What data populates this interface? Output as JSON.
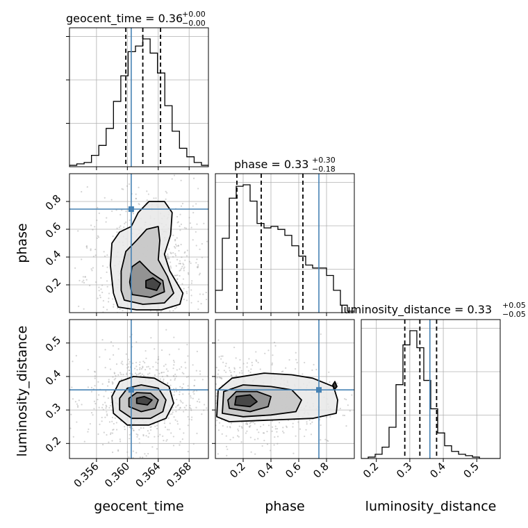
{
  "chart_data": {
    "type": "corner",
    "colors": {
      "truth": "#4682b4",
      "hist": "#000000",
      "grid": "#b0b0b0",
      "scatter": "#9e9e9e"
    },
    "parameters": [
      "geocent_time",
      "phase",
      "luminosity_distance"
    ],
    "axis_labels": [
      "geocent_time",
      "phase",
      "luminosity_distance"
    ],
    "ranges": [
      [
        0.3525,
        0.3705
      ],
      [
        0.0,
        1.0
      ],
      [
        0.155,
        0.57
      ]
    ],
    "truths": [
      0.3605,
      0.745,
      0.36
    ],
    "titles": [
      {
        "prefix": "geocent_time = ",
        "value": "0.36",
        "plus": "+0.00",
        "minus": "−0.00"
      },
      {
        "prefix": "phase = ",
        "value": "0.33",
        "plus": "+0.30",
        "minus": "−0.18"
      },
      {
        "prefix": "luminosity_distance = ",
        "value": "0.33",
        "plus": "+0.05",
        "minus": "−0.05"
      }
    ],
    "quantiles": [
      [
        0.3598,
        0.362,
        0.3643
      ],
      [
        0.155,
        0.33,
        0.63
      ],
      [
        0.285,
        0.33,
        0.38
      ]
    ],
    "ticks": [
      {
        "values": [
          0.356,
          0.36,
          0.364,
          0.368
        ],
        "labels": [
          "0.356",
          "0.360",
          "0.364",
          "0.368"
        ]
      },
      {
        "values": [
          0.2,
          0.4,
          0.6,
          0.8
        ],
        "labels": [
          "0.2",
          "0.4",
          "0.6",
          "0.8"
        ]
      },
      {
        "values": [
          0.2,
          0.3,
          0.4,
          0.5
        ],
        "labels": [
          "0.2",
          "0.3",
          "0.4",
          "0.5"
        ]
      }
    ],
    "histograms": [
      {
        "bins": [
          0.3525,
          0.35345,
          0.3544,
          0.35535,
          0.3563,
          0.35725,
          0.3582,
          0.35915,
          0.3601,
          0.36105,
          0.362,
          0.36295,
          0.3639,
          0.36485,
          0.3658,
          0.36675,
          0.3677,
          0.36865,
          0.3696,
          0.3705
        ],
        "counts": [
          1,
          2,
          3,
          8,
          15,
          27,
          46,
          64,
          81,
          85,
          90,
          80,
          66,
          43,
          25,
          13,
          7,
          3,
          1
        ]
      },
      {
        "bins": [
          0.0,
          0.05,
          0.1,
          0.15,
          0.2,
          0.25,
          0.3,
          0.35,
          0.4,
          0.45,
          0.5,
          0.55,
          0.6,
          0.65,
          0.7,
          0.75,
          0.8,
          0.85,
          0.9,
          0.95,
          1.0
        ],
        "counts": [
          15,
          50,
          77,
          85,
          86,
          75,
          60,
          57,
          58,
          56,
          52,
          45,
          38,
          32,
          30,
          30,
          25,
          15,
          5,
          1
        ]
      },
      {
        "bins": [
          0.155,
          0.17575,
          0.1965,
          0.21725,
          0.238,
          0.25875,
          0.2795,
          0.30025,
          0.321,
          0.34175,
          0.3625,
          0.38325,
          0.404,
          0.42475,
          0.44575,
          0.4665,
          0.48725,
          0.508,
          0.52875,
          0.5495,
          0.57
        ],
        "counts": [
          0,
          1,
          3,
          8,
          22,
          52,
          80,
          90,
          78,
          55,
          35,
          18,
          9,
          5,
          3,
          2,
          1,
          0,
          0,
          0
        ]
      }
    ],
    "contours_2d": [
      {
        "x_param": "geocent_time",
        "y_param": "phase",
        "peak": [
          0.3625,
          0.2
        ],
        "levels": [
          [
            [
              0.3588,
              0.04
            ],
            [
              0.3612,
              0.02
            ],
            [
              0.3644,
              0.02
            ],
            [
              0.3668,
              0.06
            ],
            [
              0.3672,
              0.14
            ],
            [
              0.3655,
              0.3
            ],
            [
              0.3648,
              0.42
            ],
            [
              0.3656,
              0.56
            ],
            [
              0.3658,
              0.72
            ],
            [
              0.3648,
              0.8
            ],
            [
              0.3628,
              0.8
            ],
            [
              0.3614,
              0.72
            ],
            [
              0.3605,
              0.62
            ],
            [
              0.359,
              0.58
            ],
            [
              0.358,
              0.5
            ],
            [
              0.3578,
              0.34
            ],
            [
              0.3582,
              0.14
            ]
          ],
          [
            [
              0.3596,
              0.09
            ],
            [
              0.362,
              0.06
            ],
            [
              0.3648,
              0.07
            ],
            [
              0.366,
              0.14
            ],
            [
              0.3652,
              0.26
            ],
            [
              0.364,
              0.38
            ],
            [
              0.3642,
              0.52
            ],
            [
              0.364,
              0.62
            ],
            [
              0.3625,
              0.6
            ],
            [
              0.3612,
              0.52
            ],
            [
              0.3598,
              0.44
            ],
            [
              0.3592,
              0.3
            ],
            [
              0.3592,
              0.16
            ]
          ],
          [
            [
              0.3606,
              0.13
            ],
            [
              0.363,
              0.11
            ],
            [
              0.3648,
              0.15
            ],
            [
              0.3646,
              0.23
            ],
            [
              0.363,
              0.29
            ],
            [
              0.3616,
              0.37
            ],
            [
              0.3606,
              0.33
            ],
            [
              0.3603,
              0.22
            ]
          ],
          [
            [
              0.3624,
              0.18
            ],
            [
              0.3638,
              0.16
            ],
            [
              0.3643,
              0.21
            ],
            [
              0.3633,
              0.25
            ],
            [
              0.3624,
              0.23
            ]
          ]
        ]
      },
      {
        "x_param": "geocent_time",
        "y_param": "luminosity_distance",
        "peak": [
          0.362,
          0.33
        ],
        "levels": [
          [
            [
              0.3582,
              0.29
            ],
            [
              0.36,
              0.255
            ],
            [
              0.3628,
              0.255
            ],
            [
              0.365,
              0.275
            ],
            [
              0.366,
              0.32
            ],
            [
              0.3654,
              0.37
            ],
            [
              0.3635,
              0.395
            ],
            [
              0.3608,
              0.4
            ],
            [
              0.359,
              0.385
            ],
            [
              0.358,
              0.34
            ]
          ],
          [
            [
              0.359,
              0.3
            ],
            [
              0.3606,
              0.275
            ],
            [
              0.363,
              0.275
            ],
            [
              0.3646,
              0.295
            ],
            [
              0.365,
              0.33
            ],
            [
              0.364,
              0.365
            ],
            [
              0.3618,
              0.375
            ],
            [
              0.36,
              0.365
            ],
            [
              0.359,
              0.335
            ]
          ],
          [
            [
              0.3602,
              0.31
            ],
            [
              0.3618,
              0.295
            ],
            [
              0.3636,
              0.305
            ],
            [
              0.364,
              0.33
            ],
            [
              0.363,
              0.35
            ],
            [
              0.3612,
              0.352
            ],
            [
              0.3602,
              0.335
            ]
          ],
          [
            [
              0.3612,
              0.32
            ],
            [
              0.3626,
              0.315
            ],
            [
              0.3632,
              0.33
            ],
            [
              0.3622,
              0.34
            ],
            [
              0.3612,
              0.335
            ]
          ]
        ]
      },
      {
        "x_param": "phase",
        "y_param": "luminosity_distance",
        "peak": [
          0.2,
          0.33
        ],
        "levels": [
          [
            [
              0.01,
              0.28
            ],
            [
              0.1,
              0.265
            ],
            [
              0.4,
              0.27
            ],
            [
              0.7,
              0.275
            ],
            [
              0.87,
              0.29
            ],
            [
              0.88,
              0.33
            ],
            [
              0.85,
              0.37
            ],
            [
              0.7,
              0.395
            ],
            [
              0.55,
              0.405
            ],
            [
              0.35,
              0.41
            ],
            [
              0.12,
              0.395
            ],
            [
              0.02,
              0.36
            ]
          ],
          [
            [
              0.05,
              0.29
            ],
            [
              0.2,
              0.28
            ],
            [
              0.4,
              0.285
            ],
            [
              0.58,
              0.295
            ],
            [
              0.62,
              0.33
            ],
            [
              0.55,
              0.36
            ],
            [
              0.4,
              0.37
            ],
            [
              0.2,
              0.375
            ],
            [
              0.06,
              0.355
            ]
          ],
          [
            [
              0.1,
              0.305
            ],
            [
              0.25,
              0.295
            ],
            [
              0.38,
              0.31
            ],
            [
              0.4,
              0.34
            ],
            [
              0.3,
              0.355
            ],
            [
              0.15,
              0.355
            ],
            [
              0.09,
              0.33
            ]
          ],
          [
            [
              0.14,
              0.315
            ],
            [
              0.25,
              0.31
            ],
            [
              0.3,
              0.325
            ],
            [
              0.25,
              0.345
            ],
            [
              0.15,
              0.34
            ]
          ],
          [
            [
              0.855,
              0.36
            ],
            [
              0.875,
              0.37
            ],
            [
              0.86,
              0.385
            ],
            [
              0.845,
              0.375
            ]
          ]
        ]
      }
    ]
  }
}
